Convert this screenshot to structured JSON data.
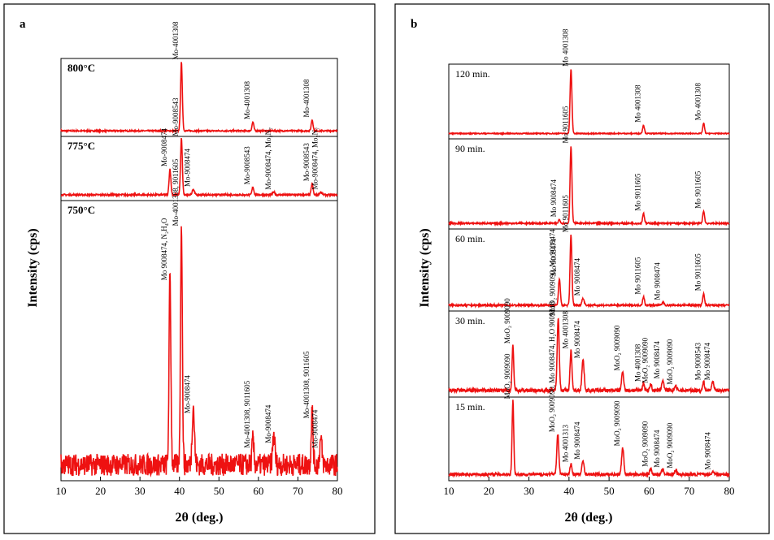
{
  "colors": {
    "trace": "#ee1111",
    "frame": "#000000"
  },
  "chart_data": [
    {
      "panel": "a",
      "type": "line",
      "xlabel": "2θ (deg.)",
      "ylabel": "Intensity (cps)",
      "xlim": [
        10,
        80
      ],
      "xticks": [
        "10",
        "20",
        "30",
        "40",
        "50",
        "60",
        "70",
        "80"
      ],
      "subplots": [
        {
          "label": "800°C",
          "noise": 0.02,
          "peaks": [
            {
              "x": 40.5,
              "h": 1.0,
              "w": 0.32,
              "label": "Mo-4001308"
            },
            {
              "x": 58.6,
              "h": 0.13,
              "w": 0.32,
              "label": "Mo-4001308"
            },
            {
              "x": 73.6,
              "h": 0.16,
              "w": 0.32,
              "label": "Mo-4001308"
            }
          ]
        },
        {
          "label": "775°C",
          "noise": 0.03,
          "peaks": [
            {
              "x": 37.6,
              "h": 0.46,
              "w": 0.32,
              "label": "Mo-9008474"
            },
            {
              "x": 40.5,
              "h": 1.0,
              "w": 0.32,
              "label": "Mo-9008543"
            },
            {
              "x": 43.5,
              "h": 0.1,
              "w": 0.4,
              "label": "Mo-9008474"
            },
            {
              "x": 58.6,
              "h": 0.14,
              "w": 0.32,
              "label": "Mo-9008543"
            },
            {
              "x": 63.9,
              "h": 0.05,
              "w": 0.4,
              "label": "Mo-9008474, Mo₂N₇"
            },
            {
              "x": 73.6,
              "h": 0.2,
              "w": 0.32,
              "label": "Mo-9008543"
            },
            {
              "x": 75.8,
              "h": 0.05,
              "w": 0.4,
              "label": "Mo-9008474, Mo₂N₇"
            }
          ]
        },
        {
          "label": "750°C",
          "noise": 0.09,
          "peaks": [
            {
              "x": 37.6,
              "h": 0.78,
              "w": 0.32,
              "label": "Mo 9008474, N₂H₄O"
            },
            {
              "x": 40.5,
              "h": 1.0,
              "w": 0.32,
              "label": "Mo-4001308, 9011605"
            },
            {
              "x": 43.5,
              "h": 0.24,
              "w": 0.4,
              "label": "Mo-9008474"
            },
            {
              "x": 58.6,
              "h": 0.1,
              "w": 0.32,
              "label": "Mo-4001308, 9011605"
            },
            {
              "x": 63.9,
              "h": 0.12,
              "w": 0.4,
              "label": "Mo-9008474"
            },
            {
              "x": 73.6,
              "h": 0.22,
              "w": 0.32,
              "label": "Mo-4001308, 9011605"
            },
            {
              "x": 75.8,
              "h": 0.1,
              "w": 0.4,
              "label": "Mo-9008474"
            }
          ]
        }
      ]
    },
    {
      "panel": "b",
      "type": "line",
      "xlabel": "2θ (deg.)",
      "ylabel": "Intensity (cps)",
      "xlim": [
        10,
        80
      ],
      "xticks": [
        "10",
        "20",
        "30",
        "40",
        "50",
        "60",
        "70",
        "80"
      ],
      "subplots": [
        {
          "label": "120 min.",
          "noise": 0.015,
          "peaks": [
            {
              "x": 40.5,
              "h": 1.0,
              "w": 0.32,
              "label": "Mo 4001308"
            },
            {
              "x": 58.6,
              "h": 0.13,
              "w": 0.32,
              "label": "Mo 4001308"
            },
            {
              "x": 73.6,
              "h": 0.16,
              "w": 0.32,
              "label": "Mo 4001308"
            }
          ]
        },
        {
          "label": "90 min.",
          "noise": 0.02,
          "peaks": [
            {
              "x": 37.6,
              "h": 0.05,
              "w": 0.32,
              "label": "Mo 9008474"
            },
            {
              "x": 40.5,
              "h": 1.0,
              "w": 0.32,
              "label": "Mo 9011605"
            },
            {
              "x": 58.6,
              "h": 0.13,
              "w": 0.32,
              "label": "Mo 9011605"
            },
            {
              "x": 73.6,
              "h": 0.16,
              "w": 0.32,
              "label": "Mo 9011605"
            }
          ]
        },
        {
          "label": "60 min.",
          "noise": 0.025,
          "peaks": [
            {
              "x": 37.6,
              "h": 0.38,
              "w": 0.32,
              "label": "Mo 9008474"
            },
            {
              "x": 40.5,
              "h": 1.0,
              "w": 0.32,
              "label": "Mo 9011605"
            },
            {
              "x": 43.5,
              "h": 0.1,
              "w": 0.4,
              "label": "Mo 9008474"
            },
            {
              "x": 58.6,
              "h": 0.12,
              "w": 0.32,
              "label": "Mo 9011605"
            },
            {
              "x": 63.5,
              "h": 0.04,
              "w": 0.4,
              "label": "Mo 9008474"
            },
            {
              "x": 73.6,
              "h": 0.17,
              "w": 0.32,
              "label": "Mo 9011605"
            }
          ]
        },
        {
          "label": "30 min.",
          "noise": 0.05,
          "peaks": [
            {
              "x": 26.0,
              "h": 0.62,
              "w": 0.3,
              "label": "MoO₂ 9009090"
            },
            {
              "x": 37.3,
              "h": 1.0,
              "w": 0.36,
              "label": "MoO₂ 9009090, Mo 9008474"
            },
            {
              "x": 40.5,
              "h": 0.55,
              "w": 0.32,
              "label": "Mo 4001308"
            },
            {
              "x": 43.5,
              "h": 0.42,
              "w": 0.38,
              "label": "Mo 9008474"
            },
            {
              "x": 53.4,
              "h": 0.25,
              "w": 0.38,
              "label": "MoO₂ 9009090"
            },
            {
              "x": 58.6,
              "h": 0.1,
              "w": 0.32,
              "label": "Mo 4001308"
            },
            {
              "x": 60.4,
              "h": 0.08,
              "w": 0.35,
              "label": "MoO₂ 9009090"
            },
            {
              "x": 63.4,
              "h": 0.14,
              "w": 0.38,
              "label": "Mo 9008474"
            },
            {
              "x": 66.6,
              "h": 0.06,
              "w": 0.38,
              "label": "MoO₂ 9009090"
            },
            {
              "x": 73.6,
              "h": 0.12,
              "w": 0.32,
              "label": "Mo 9008543"
            },
            {
              "x": 75.9,
              "h": 0.12,
              "w": 0.38,
              "label": "Mo 9008474"
            }
          ]
        },
        {
          "label": "15 min.",
          "noise": 0.04,
          "peaks": [
            {
              "x": 26.0,
              "h": 1.0,
              "w": 0.3,
              "label": "MoO₂ 9009090"
            },
            {
              "x": 37.2,
              "h": 0.55,
              "w": 0.36,
              "label": "MoO₂ 9009090, Mo 9008474, H₂O 9009218"
            },
            {
              "x": 40.5,
              "h": 0.14,
              "w": 0.32,
              "label": "Mo 4001313"
            },
            {
              "x": 43.5,
              "h": 0.18,
              "w": 0.38,
              "label": "Mo 9008474"
            },
            {
              "x": 53.4,
              "h": 0.36,
              "w": 0.38,
              "label": "MoO₂ 9009090"
            },
            {
              "x": 60.4,
              "h": 0.08,
              "w": 0.35,
              "label": "MoO₂ 9009090"
            },
            {
              "x": 63.4,
              "h": 0.07,
              "w": 0.38,
              "label": "Mo 9008474"
            },
            {
              "x": 66.6,
              "h": 0.06,
              "w": 0.38,
              "label": "MoO₂ 9009090"
            },
            {
              "x": 76.0,
              "h": 0.04,
              "w": 0.38,
              "label": "Mo 9008474"
            }
          ]
        }
      ]
    }
  ]
}
